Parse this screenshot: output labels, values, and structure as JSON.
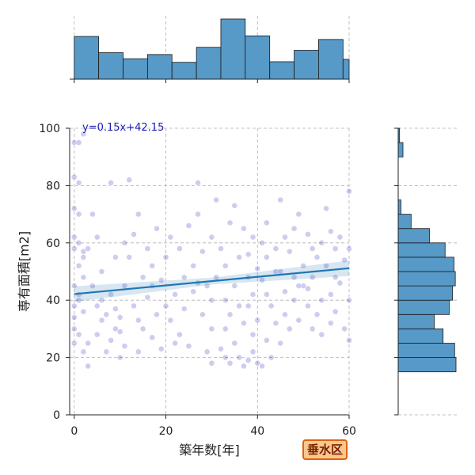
{
  "badge": {
    "label": "垂水区"
  },
  "colors": {
    "scatter": "#1a1ab8",
    "regression": "#1f77b4",
    "hist_fill": "#5799c7",
    "hist_edge": "#1a1a1a",
    "grid": "#b0b0b0",
    "equation": "#1a1ab8",
    "badge_bg": "#f7c98f",
    "badge_border": "#e0620f"
  },
  "chart_data": {
    "type": "scatter",
    "xlabel": "築年数[年]",
    "ylabel": "専有面積[m2]",
    "xlim": [
      -1,
      60
    ],
    "ylim": [
      0,
      100
    ],
    "xticks": [
      0,
      20,
      40,
      60
    ],
    "yticks": [
      0,
      20,
      40,
      60,
      80,
      100
    ],
    "grid": true,
    "regression": {
      "slope": 0.15,
      "intercept": 42.15,
      "label": "y=0.15x+42.15"
    },
    "points": [
      [
        0,
        95
      ],
      [
        1,
        95
      ],
      [
        0,
        83
      ],
      [
        1,
        81
      ],
      [
        2,
        98
      ],
      [
        0,
        72
      ],
      [
        1,
        70
      ],
      [
        0,
        62
      ],
      [
        1,
        60
      ],
      [
        2,
        57
      ],
      [
        0,
        58
      ],
      [
        1,
        52
      ],
      [
        0,
        45
      ],
      [
        2,
        48
      ],
      [
        1,
        42
      ],
      [
        0,
        38
      ],
      [
        2,
        36
      ],
      [
        0,
        30
      ],
      [
        1,
        28
      ],
      [
        0,
        25
      ],
      [
        2,
        22
      ],
      [
        3,
        17
      ],
      [
        0,
        34
      ],
      [
        1,
        40
      ],
      [
        2,
        55
      ],
      [
        4,
        70
      ],
      [
        3,
        58
      ],
      [
        5,
        62
      ],
      [
        4,
        45
      ],
      [
        5,
        38
      ],
      [
        6,
        33
      ],
      [
        5,
        28
      ],
      [
        7,
        35
      ],
      [
        8,
        26
      ],
      [
        8,
        42
      ],
      [
        9,
        30
      ],
      [
        7,
        22
      ],
      [
        6,
        50
      ],
      [
        9,
        55
      ],
      [
        8,
        81
      ],
      [
        10,
        20
      ],
      [
        10,
        34
      ],
      [
        9,
        37
      ],
      [
        10,
        29
      ],
      [
        11,
        24
      ],
      [
        11,
        45
      ],
      [
        12,
        55
      ],
      [
        12,
        82
      ],
      [
        13,
        38
      ],
      [
        13,
        63
      ],
      [
        14,
        22
      ],
      [
        15,
        30
      ],
      [
        15,
        48
      ],
      [
        16,
        58
      ],
      [
        14,
        70
      ],
      [
        16,
        41
      ],
      [
        17,
        27
      ],
      [
        18,
        35
      ],
      [
        17,
        52
      ],
      [
        18,
        65
      ],
      [
        19,
        47
      ],
      [
        19,
        23
      ],
      [
        20,
        55
      ],
      [
        21,
        33
      ],
      [
        21,
        62
      ],
      [
        22,
        42
      ],
      [
        23,
        28
      ],
      [
        22,
        25
      ],
      [
        24,
        48
      ],
      [
        25,
        66
      ],
      [
        24,
        37
      ],
      [
        26,
        43
      ],
      [
        26,
        52
      ],
      [
        27,
        70
      ],
      [
        27,
        81
      ],
      [
        28,
        35
      ],
      [
        28,
        57
      ],
      [
        29,
        22
      ],
      [
        29,
        45
      ],
      [
        30,
        18
      ],
      [
        30,
        30
      ],
      [
        30,
        62
      ],
      [
        31,
        48
      ],
      [
        31,
        75
      ],
      [
        32,
        23
      ],
      [
        32,
        58
      ],
      [
        33,
        20
      ],
      [
        33,
        40
      ],
      [
        33,
        52
      ],
      [
        34,
        18
      ],
      [
        34,
        67
      ],
      [
        35,
        25
      ],
      [
        35,
        45
      ],
      [
        35,
        73
      ],
      [
        36,
        20
      ],
      [
        36,
        55
      ],
      [
        37,
        17
      ],
      [
        37,
        32
      ],
      [
        37,
        65
      ],
      [
        38,
        19
      ],
      [
        38,
        48
      ],
      [
        38,
        56
      ],
      [
        39,
        22
      ],
      [
        39,
        62
      ],
      [
        39,
        42
      ],
      [
        40,
        18
      ],
      [
        40,
        33
      ],
      [
        40,
        51
      ],
      [
        41,
        17
      ],
      [
        41,
        47
      ],
      [
        41,
        60
      ],
      [
        42,
        26
      ],
      [
        42,
        55
      ],
      [
        42,
        67
      ],
      [
        43,
        20
      ],
      [
        43,
        38
      ],
      [
        44,
        50
      ],
      [
        44,
        58
      ],
      [
        45,
        25
      ],
      [
        45,
        75
      ],
      [
        46,
        43
      ],
      [
        46,
        62
      ],
      [
        47,
        30
      ],
      [
        47,
        57
      ],
      [
        48,
        40
      ],
      [
        48,
        48
      ],
      [
        49,
        33
      ],
      [
        49,
        70
      ],
      [
        50,
        52
      ],
      [
        50,
        45
      ],
      [
        51,
        63
      ],
      [
        51,
        38
      ],
      [
        52,
        58
      ],
      [
        52,
        48
      ],
      [
        53,
        35
      ],
      [
        53,
        55
      ],
      [
        54,
        60
      ],
      [
        54,
        28
      ],
      [
        55,
        72
      ],
      [
        55,
        52
      ],
      [
        56,
        64
      ],
      [
        56,
        42
      ],
      [
        57,
        36
      ],
      [
        57,
        58
      ],
      [
        58,
        62
      ],
      [
        58,
        46
      ],
      [
        59,
        30
      ],
      [
        59,
        54
      ],
      [
        60,
        58
      ],
      [
        60,
        40
      ],
      [
        60,
        78
      ],
      [
        60,
        26
      ],
      [
        3,
        25
      ],
      [
        6,
        40
      ],
      [
        11,
        60
      ],
      [
        14,
        33
      ],
      [
        17,
        45
      ],
      [
        20,
        38
      ],
      [
        23,
        58
      ],
      [
        25,
        24
      ],
      [
        27,
        46
      ],
      [
        30,
        40
      ],
      [
        33,
        30
      ],
      [
        36,
        38
      ],
      [
        39,
        28
      ],
      [
        42,
        42
      ],
      [
        45,
        50
      ],
      [
        48,
        65
      ],
      [
        51,
        44
      ],
      [
        54,
        40
      ],
      [
        57,
        48
      ],
      [
        34,
        35
      ],
      [
        38,
        38
      ],
      [
        44,
        32
      ],
      [
        46,
        35
      ],
      [
        49,
        45
      ],
      [
        52,
        30
      ],
      [
        56,
        32
      ]
    ],
    "hist_x": {
      "bin_edges": [
        0,
        5.33,
        10.67,
        16,
        21.33,
        26.67,
        32,
        37.33,
        42.67,
        48,
        53.33,
        58.67,
        60
      ],
      "counts": [
        71,
        44,
        34,
        41,
        28,
        53,
        100,
        72,
        29,
        48,
        66,
        33
      ]
    },
    "hist_y": {
      "bin_edges": [
        15,
        20,
        25,
        30,
        35,
        40,
        45,
        50,
        55,
        60,
        65,
        70,
        75,
        80,
        85,
        90,
        95,
        100
      ],
      "counts": [
        85,
        83,
        66,
        53,
        75,
        80,
        84,
        82,
        69,
        46,
        19,
        4,
        0,
        0,
        0,
        7,
        2
      ]
    }
  }
}
